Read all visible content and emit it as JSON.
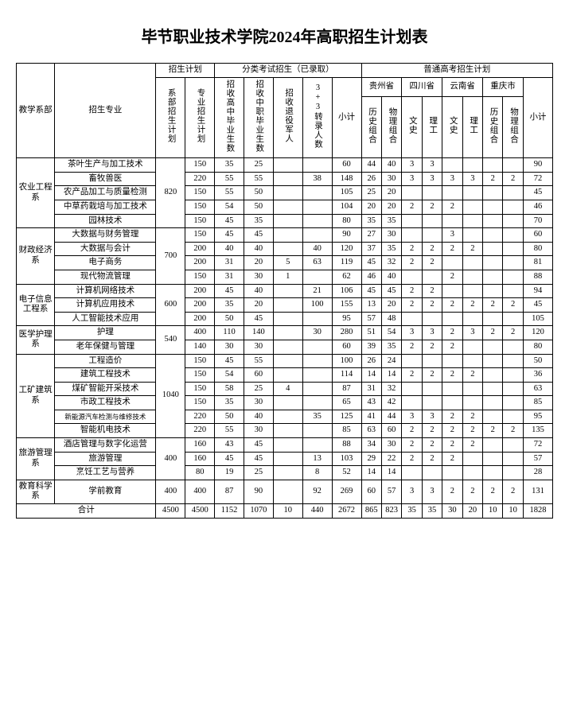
{
  "title": "毕节职业技术学院2024年高职招生计划表",
  "headers": {
    "dept": "教学系部",
    "major": "招生专业",
    "plan_group": "招生计划",
    "dept_plan": "系部招生计划",
    "major_plan": "专业招生计划",
    "classified_group": "分类考试招生（已录取）",
    "gaozhong": "招收高中毕业生数",
    "zhongzhi": "招收中职毕业生数",
    "retired": "招收退役军人",
    "transfer": "3+3转录人数",
    "subtotal": "小计",
    "gaokao_group": "普通高考招生计划",
    "guizhou": "贵州省",
    "sichuan": "四川省",
    "yunnan": "云南省",
    "chongqing": "重庆市",
    "hist": "历史组合",
    "phys": "物理组合",
    "wenshi": "文史",
    "ligong": "理工",
    "total_label": "合计"
  },
  "departments": [
    {
      "name": "农业工程系",
      "dept_plan": 820,
      "majors": [
        {
          "name": "茶叶生产与加工技术",
          "plan": 150,
          "gz": 35,
          "zz": 25,
          "ret": "",
          "tr": "",
          "sub": 60,
          "gz_h": 44,
          "gz_p": 40,
          "sc_w": 3,
          "sc_l": 3,
          "yn_w": "",
          "yn_l": "",
          "cq_h": "",
          "cq_p": "",
          "tot": 90
        },
        {
          "name": "畜牧兽医",
          "plan": 220,
          "gz": 55,
          "zz": 55,
          "ret": "",
          "tr": 38,
          "sub": 148,
          "gz_h": 26,
          "gz_p": 30,
          "sc_w": 3,
          "sc_l": 3,
          "yn_w": 3,
          "yn_l": 3,
          "cq_h": 2,
          "cq_p": 2,
          "tot": 72
        },
        {
          "name": "农产品加工与质量检测",
          "plan": 150,
          "gz": 55,
          "zz": 50,
          "ret": "",
          "tr": "",
          "sub": 105,
          "gz_h": 25,
          "gz_p": 20,
          "sc_w": "",
          "sc_l": "",
          "yn_w": "",
          "yn_l": "",
          "cq_h": "",
          "cq_p": "",
          "tot": 45
        },
        {
          "name": "中草药栽培与加工技术",
          "plan": 150,
          "gz": 54,
          "zz": 50,
          "ret": "",
          "tr": "",
          "sub": 104,
          "gz_h": 20,
          "gz_p": 20,
          "sc_w": 2,
          "sc_l": 2,
          "yn_w": 2,
          "yn_l": "",
          "cq_h": "",
          "cq_p": "",
          "tot": 46
        },
        {
          "name": "园林技术",
          "plan": 150,
          "gz": 45,
          "zz": 35,
          "ret": "",
          "tr": "",
          "sub": 80,
          "gz_h": 35,
          "gz_p": 35,
          "sc_w": "",
          "sc_l": "",
          "yn_w": "",
          "yn_l": "",
          "cq_h": "",
          "cq_p": "",
          "tot": 70
        }
      ]
    },
    {
      "name": "财政经济系",
      "dept_plan": 700,
      "majors": [
        {
          "name": "大数据与财务管理",
          "plan": 150,
          "gz": 45,
          "zz": 45,
          "ret": "",
          "tr": "",
          "sub": 90,
          "gz_h": 27,
          "gz_p": 30,
          "sc_w": "",
          "sc_l": "",
          "yn_w": 3,
          "yn_l": "",
          "cq_h": "",
          "cq_p": "",
          "tot": 60
        },
        {
          "name": "大数据与会计",
          "plan": 200,
          "gz": 40,
          "zz": 40,
          "ret": "",
          "tr": 40,
          "sub": 120,
          "gz_h": 37,
          "gz_p": 35,
          "sc_w": 2,
          "sc_l": 2,
          "yn_w": 2,
          "yn_l": 2,
          "cq_h": "",
          "cq_p": "",
          "tot": 80
        },
        {
          "name": "电子商务",
          "plan": 200,
          "gz": 31,
          "zz": 20,
          "ret": 5,
          "tr": 63,
          "sub": 119,
          "gz_h": 45,
          "gz_p": 32,
          "sc_w": 2,
          "sc_l": 2,
          "yn_w": "",
          "yn_l": "",
          "cq_h": "",
          "cq_p": "",
          "tot": 81
        },
        {
          "name": "现代物流管理",
          "plan": 150,
          "gz": 31,
          "zz": 30,
          "ret": 1,
          "tr": "",
          "sub": 62,
          "gz_h": 46,
          "gz_p": 40,
          "sc_w": "",
          "sc_l": "",
          "yn_w": 2,
          "yn_l": "",
          "cq_h": "",
          "cq_p": "",
          "tot": 88
        }
      ]
    },
    {
      "name": "电子信息工程系",
      "dept_plan": 600,
      "majors": [
        {
          "name": "计算机网络技术",
          "plan": 200,
          "gz": 45,
          "zz": 40,
          "ret": "",
          "tr": 21,
          "sub": 106,
          "gz_h": 45,
          "gz_p": 45,
          "sc_w": 2,
          "sc_l": 2,
          "yn_w": "",
          "yn_l": "",
          "cq_h": "",
          "cq_p": "",
          "tot": 94
        },
        {
          "name": "计算机应用技术",
          "plan": 200,
          "gz": 35,
          "zz": 20,
          "ret": "",
          "tr": 100,
          "sub": 155,
          "gz_h": 13,
          "gz_p": 20,
          "sc_w": 2,
          "sc_l": 2,
          "yn_w": 2,
          "yn_l": 2,
          "cq_h": 2,
          "cq_p": 2,
          "tot": 45
        },
        {
          "name": "人工智能技术应用",
          "plan": 200,
          "gz": 50,
          "zz": 45,
          "ret": "",
          "tr": "",
          "sub": 95,
          "gz_h": 57,
          "gz_p": 48,
          "sc_w": "",
          "sc_l": "",
          "yn_w": "",
          "yn_l": "",
          "cq_h": "",
          "cq_p": "",
          "tot": 105
        }
      ]
    },
    {
      "name": "医学护理系",
      "dept_plan": 540,
      "majors": [
        {
          "name": "护理",
          "plan": 400,
          "gz": 110,
          "zz": 140,
          "ret": "",
          "tr": 30,
          "sub": 280,
          "gz_h": 51,
          "gz_p": 54,
          "sc_w": 3,
          "sc_l": 3,
          "yn_w": 2,
          "yn_l": 3,
          "cq_h": 2,
          "cq_p": 2,
          "tot": 120
        },
        {
          "name": "老年保健与管理",
          "plan": 140,
          "gz": 30,
          "zz": 30,
          "ret": "",
          "tr": "",
          "sub": 60,
          "gz_h": 39,
          "gz_p": 35,
          "sc_w": 2,
          "sc_l": 2,
          "yn_w": 2,
          "yn_l": "",
          "cq_h": "",
          "cq_p": "",
          "tot": 80
        }
      ]
    },
    {
      "name": "工矿建筑系",
      "dept_plan": 1040,
      "majors": [
        {
          "name": "工程造价",
          "plan": 150,
          "gz": 45,
          "zz": 55,
          "ret": "",
          "tr": "",
          "sub": 100,
          "gz_h": 26,
          "gz_p": 24,
          "sc_w": "",
          "sc_l": "",
          "yn_w": "",
          "yn_l": "",
          "cq_h": "",
          "cq_p": "",
          "tot": 50
        },
        {
          "name": "建筑工程技术",
          "plan": 150,
          "gz": 54,
          "zz": 60,
          "ret": "",
          "tr": "",
          "sub": 114,
          "gz_h": 14,
          "gz_p": 14,
          "sc_w": 2,
          "sc_l": 2,
          "yn_w": 2,
          "yn_l": 2,
          "cq_h": "",
          "cq_p": "",
          "tot": 36
        },
        {
          "name": "煤矿智能开采技术",
          "plan": 150,
          "gz": 58,
          "zz": 25,
          "ret": 4,
          "tr": "",
          "sub": 87,
          "gz_h": 31,
          "gz_p": 32,
          "sc_w": "",
          "sc_l": "",
          "yn_w": "",
          "yn_l": "",
          "cq_h": "",
          "cq_p": "",
          "tot": 63
        },
        {
          "name": "市政工程技术",
          "plan": 150,
          "gz": 35,
          "zz": 30,
          "ret": "",
          "tr": "",
          "sub": 65,
          "gz_h": 43,
          "gz_p": 42,
          "sc_w": "",
          "sc_l": "",
          "yn_w": "",
          "yn_l": "",
          "cq_h": "",
          "cq_p": "",
          "tot": 85
        },
        {
          "name": "新能源汽车检测与维修技术",
          "plan": 220,
          "gz": 50,
          "zz": 40,
          "ret": "",
          "tr": 35,
          "sub": 125,
          "gz_h": 41,
          "gz_p": 44,
          "sc_w": 3,
          "sc_l": 3,
          "yn_w": 2,
          "yn_l": 2,
          "cq_h": "",
          "cq_p": "",
          "tot": 95
        },
        {
          "name": "智能机电技术",
          "plan": 220,
          "gz": 55,
          "zz": 30,
          "ret": "",
          "tr": "",
          "sub": 85,
          "gz_h": 63,
          "gz_p": 60,
          "sc_w": 2,
          "sc_l": 2,
          "yn_w": 2,
          "yn_l": 2,
          "cq_h": 2,
          "cq_p": 2,
          "tot": 135
        }
      ]
    },
    {
      "name": "旅游管理系",
      "dept_plan": 400,
      "majors": [
        {
          "name": "酒店管理与数字化运营",
          "plan": 160,
          "gz": 43,
          "zz": 45,
          "ret": "",
          "tr": "",
          "sub": 88,
          "gz_h": 34,
          "gz_p": 30,
          "sc_w": 2,
          "sc_l": 2,
          "yn_w": 2,
          "yn_l": 2,
          "cq_h": "",
          "cq_p": "",
          "tot": 72
        },
        {
          "name": "旅游管理",
          "plan": 160,
          "gz": 45,
          "zz": 45,
          "ret": "",
          "tr": 13,
          "sub": 103,
          "gz_h": 29,
          "gz_p": 22,
          "sc_w": 2,
          "sc_l": 2,
          "yn_w": 2,
          "yn_l": "",
          "cq_h": "",
          "cq_p": "",
          "tot": 57
        },
        {
          "name": "烹饪工艺与营养",
          "plan": 80,
          "gz": 19,
          "zz": 25,
          "ret": "",
          "tr": 8,
          "sub": 52,
          "gz_h": 14,
          "gz_p": 14,
          "sc_w": "",
          "sc_l": "",
          "yn_w": "",
          "yn_l": "",
          "cq_h": "",
          "cq_p": "",
          "tot": 28
        }
      ]
    },
    {
      "name": "教育科学系",
      "dept_plan": 400,
      "majors": [
        {
          "name": "学前教育",
          "plan": 400,
          "gz": 87,
          "zz": 90,
          "ret": "",
          "tr": 92,
          "sub": 269,
          "gz_h": 60,
          "gz_p": 57,
          "sc_w": 3,
          "sc_l": 3,
          "yn_w": 2,
          "yn_l": 2,
          "cq_h": 2,
          "cq_p": 2,
          "tot": 131
        }
      ]
    }
  ],
  "totals": {
    "dept_plan": 4500,
    "major_plan": 4500,
    "gz": 1152,
    "zz": 1070,
    "ret": 10,
    "tr": 440,
    "sub": 2672,
    "gz_h": 865,
    "gz_p": 823,
    "sc_w": 35,
    "sc_l": 35,
    "yn_w": 30,
    "yn_l": 20,
    "cq_h": 10,
    "cq_p": 10,
    "tot": 1828
  }
}
